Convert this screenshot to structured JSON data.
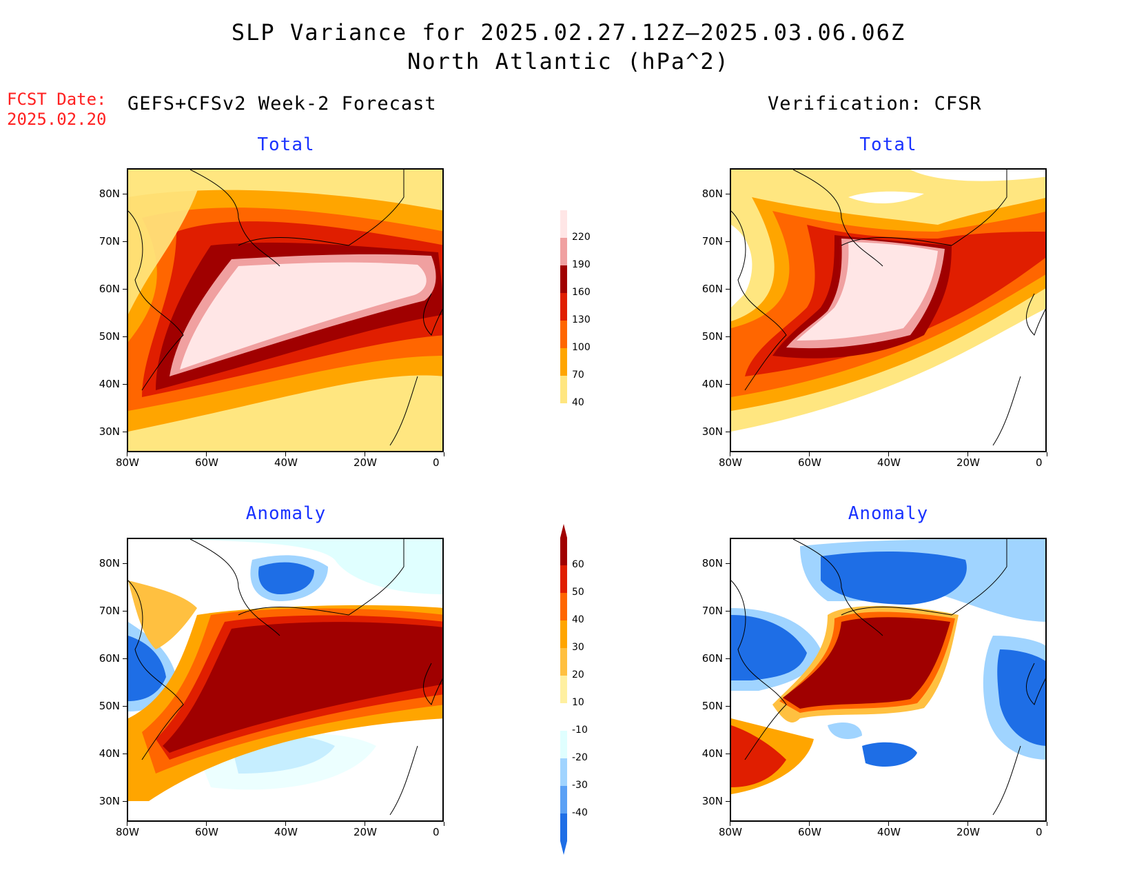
{
  "header": {
    "title_line1": "SLP Variance for 2025.02.27.12Z–2025.03.06.06Z",
    "title_line2": "North Atlantic (hPa^2)",
    "fcst_label": "FCST Date:",
    "fcst_date": "2025.02.20",
    "left_column": "GEFS+CFSv2 Week-2 Forecast",
    "right_column": "Verification: CFSR"
  },
  "panels": {
    "total_title": "Total",
    "anomaly_title": "Anomaly"
  },
  "axes": {
    "lat_ticks": [
      "80N",
      "70N",
      "60N",
      "50N",
      "40N",
      "30N"
    ],
    "lon_ticks": [
      "80W",
      "60W",
      "40W",
      "20W",
      "0"
    ]
  },
  "colorbar_total": {
    "levels": [
      "220",
      "190",
      "160",
      "130",
      "100",
      "70",
      "40"
    ],
    "colors": [
      "#ffe6e6",
      "#f0a0a0",
      "#a00000",
      "#e01e00",
      "#ff6600",
      "#ffa500",
      "#ffe680"
    ]
  },
  "colorbar_anomaly": {
    "levels": [
      "60",
      "50",
      "40",
      "30",
      "20",
      "10",
      "-10",
      "-20",
      "-30",
      "-40"
    ],
    "colors": [
      "#a00000",
      "#e01e00",
      "#ff6600",
      "#ffa500",
      "#ffc040",
      "#fff0a0",
      "#ffffff",
      "#e0ffff",
      "#a0d4ff",
      "#5aa0f5",
      "#1e6ee6"
    ]
  }
}
